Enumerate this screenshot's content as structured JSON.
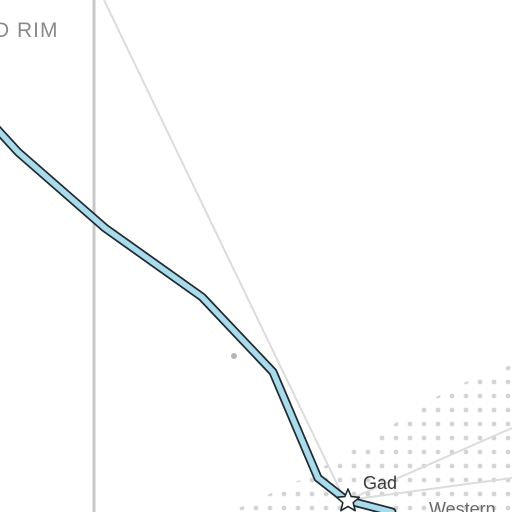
{
  "map": {
    "region_label": "D RIM",
    "places": {
      "gad": "Gad",
      "western": "Western"
    },
    "colors": {
      "background": "#ffffff",
      "route_fill": "#a9dbeb",
      "route_casing": "#1f2a33",
      "boundary_line": "#c8c8c8",
      "minor_road": "#dcdcdc",
      "dot_pattern": "#d4d4d4"
    },
    "icons": {
      "waypoint": "star-marker-icon",
      "poi": "dot-marker-icon"
    }
  }
}
